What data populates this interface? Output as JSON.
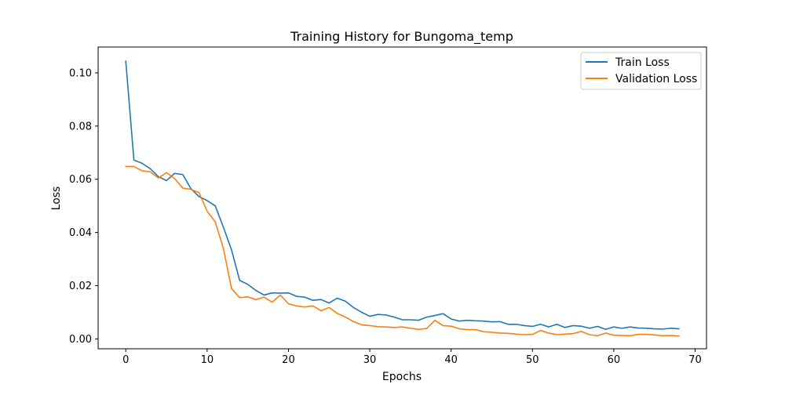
{
  "chart_data": {
    "type": "line",
    "title": "Training History for Bungoma_temp",
    "xlabel": "Epochs",
    "ylabel": "Loss",
    "xlim": [
      -3.4,
      71.4
    ],
    "ylim": [
      -0.0037,
      0.1097
    ],
    "xticks": [
      0,
      10,
      20,
      30,
      40,
      50,
      60,
      70
    ],
    "xtick_labels": [
      "0",
      "10",
      "20",
      "30",
      "40",
      "50",
      "60",
      "70"
    ],
    "yticks": [
      0.0,
      0.02,
      0.04,
      0.06,
      0.08,
      0.1
    ],
    "ytick_labels": [
      "0.00",
      "0.02",
      "0.04",
      "0.06",
      "0.08",
      "0.10"
    ],
    "grid": false,
    "legend": "top-right",
    "x": [
      0,
      1,
      2,
      3,
      4,
      5,
      6,
      7,
      8,
      9,
      10,
      11,
      12,
      13,
      14,
      15,
      16,
      17,
      18,
      19,
      20,
      21,
      22,
      23,
      24,
      25,
      26,
      27,
      28,
      29,
      30,
      31,
      32,
      33,
      34,
      35,
      36,
      37,
      38,
      39,
      40,
      41,
      42,
      43,
      44,
      45,
      46,
      47,
      48,
      49,
      50,
      51,
      52,
      53,
      54,
      55,
      56,
      57,
      58,
      59,
      60,
      61,
      62,
      63,
      64,
      65,
      66,
      67,
      68
    ],
    "series": [
      {
        "name": "Train Loss",
        "color": "#1f77b4",
        "values": [
          0.1044,
          0.0672,
          0.066,
          0.064,
          0.061,
          0.0595,
          0.0622,
          0.0618,
          0.0565,
          0.0535,
          0.052,
          0.05,
          0.042,
          0.0335,
          0.022,
          0.0205,
          0.0182,
          0.0165,
          0.0173,
          0.0172,
          0.0173,
          0.016,
          0.0157,
          0.0145,
          0.0148,
          0.0135,
          0.0153,
          0.0142,
          0.0118,
          0.01,
          0.0085,
          0.0092,
          0.009,
          0.0082,
          0.0072,
          0.0072,
          0.007,
          0.0082,
          0.0088,
          0.0095,
          0.0075,
          0.0067,
          0.007,
          0.0068,
          0.0067,
          0.0064,
          0.0065,
          0.0055,
          0.0055,
          0.005,
          0.0047,
          0.0055,
          0.0045,
          0.0055,
          0.0043,
          0.005,
          0.0048,
          0.004,
          0.0047,
          0.0036,
          0.0045,
          0.004,
          0.0045,
          0.0041,
          0.004,
          0.0038,
          0.0037,
          0.004,
          0.0038
        ]
      },
      {
        "name": "Validation Loss",
        "color": "#ff7f0e",
        "values": [
          0.0648,
          0.0648,
          0.0632,
          0.0628,
          0.0605,
          0.0625,
          0.0603,
          0.0567,
          0.0562,
          0.055,
          0.048,
          0.044,
          0.034,
          0.019,
          0.0155,
          0.0158,
          0.0148,
          0.0157,
          0.0138,
          0.0165,
          0.0132,
          0.0124,
          0.012,
          0.0124,
          0.0106,
          0.0118,
          0.0096,
          0.0082,
          0.0065,
          0.0053,
          0.005,
          0.0046,
          0.0045,
          0.0043,
          0.0045,
          0.004,
          0.0036,
          0.0039,
          0.007,
          0.005,
          0.0048,
          0.0038,
          0.0035,
          0.0035,
          0.0027,
          0.0025,
          0.0022,
          0.0021,
          0.0018,
          0.0016,
          0.0017,
          0.0032,
          0.0022,
          0.0016,
          0.0018,
          0.002,
          0.0028,
          0.0016,
          0.0012,
          0.0022,
          0.0014,
          0.0013,
          0.0012,
          0.0017,
          0.0017,
          0.0015,
          0.0012,
          0.0013,
          0.0011
        ]
      }
    ]
  }
}
